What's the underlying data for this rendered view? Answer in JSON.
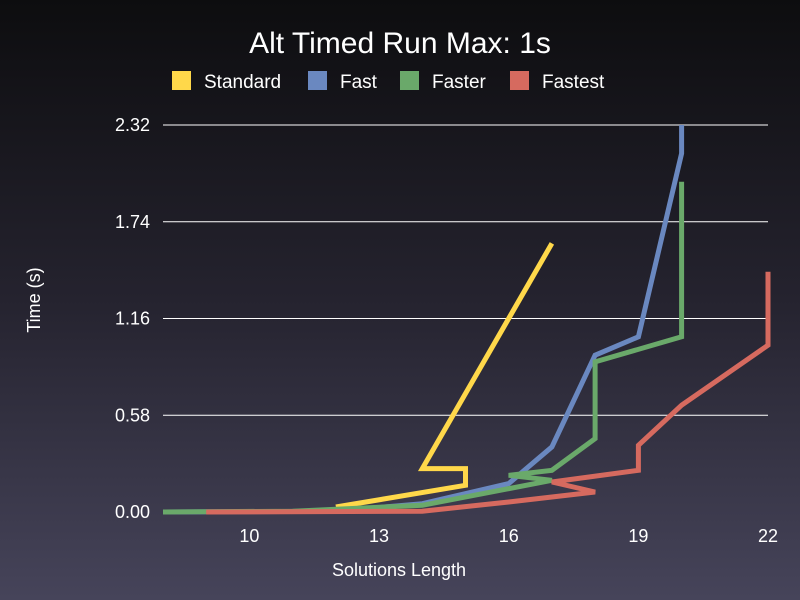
{
  "chart_data": {
    "type": "line",
    "title": "Alt Timed Run Max: 1s",
    "xlabel": "Solutions Length",
    "ylabel": "Time (s)",
    "xlim": [
      8,
      22
    ],
    "ylim": [
      0,
      2.32
    ],
    "x_ticks": [
      "10",
      "13",
      "16",
      "19",
      "22"
    ],
    "y_ticks": [
      "0.00",
      "0.58",
      "1.16",
      "1.74",
      "2.32"
    ],
    "grid": "horizontal",
    "legend_position": "top",
    "series": [
      {
        "name": "Standard",
        "color": "#ffd84a",
        "points": [
          [
            12,
            0.03
          ],
          [
            15,
            0.16
          ],
          [
            15,
            0.26
          ],
          [
            14,
            0.26
          ],
          [
            17,
            1.61
          ]
        ]
      },
      {
        "name": "Fast",
        "color": "#6a88c0",
        "points": [
          [
            8,
            0.0
          ],
          [
            12,
            0.005
          ],
          [
            14,
            0.05
          ],
          [
            16,
            0.17
          ],
          [
            17,
            0.39
          ],
          [
            18,
            0.94
          ],
          [
            19,
            1.05
          ],
          [
            20,
            2.15
          ],
          [
            20,
            2.32
          ]
        ]
      },
      {
        "name": "Faster",
        "color": "#6aa96a",
        "points": [
          [
            8,
            0.0
          ],
          [
            11,
            0.005
          ],
          [
            14,
            0.04
          ],
          [
            17,
            0.19
          ],
          [
            16,
            0.22
          ],
          [
            17,
            0.25
          ],
          [
            18,
            0.44
          ],
          [
            18,
            0.9
          ],
          [
            20,
            1.05
          ],
          [
            20,
            1.98
          ]
        ]
      },
      {
        "name": "Fastest",
        "color": "#d66a5f",
        "points": [
          [
            9,
            0.0
          ],
          [
            14,
            0.005
          ],
          [
            16,
            0.06
          ],
          [
            18,
            0.12
          ],
          [
            17,
            0.18
          ],
          [
            19,
            0.25
          ],
          [
            19,
            0.4
          ],
          [
            20,
            0.64
          ],
          [
            22,
            1.0
          ],
          [
            22,
            1.44
          ]
        ]
      }
    ]
  }
}
